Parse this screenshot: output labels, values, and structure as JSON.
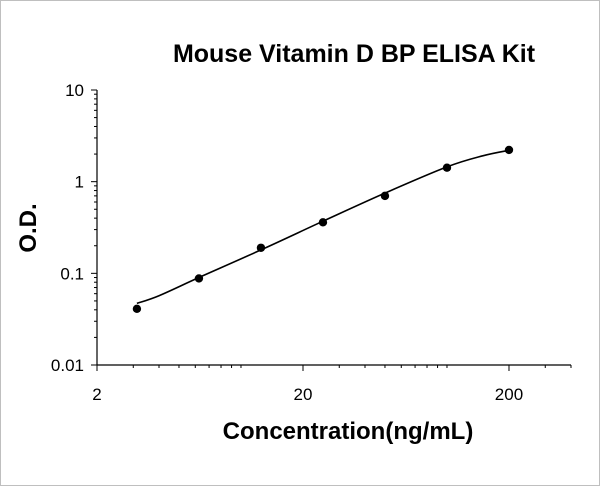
{
  "chart_data": {
    "type": "scatter",
    "title": "Mouse Vitamin D BP ELISA Kit",
    "xlabel": "Concentration(ng/mL)",
    "ylabel": "O.D.",
    "x_scale": "log",
    "y_scale": "log",
    "xlim": [
      2,
      400
    ],
    "ylim": [
      0.01,
      10
    ],
    "x_tick_labels": [
      "2",
      "20",
      "200"
    ],
    "y_tick_labels": [
      "0.01",
      "0.1",
      "1",
      "10"
    ],
    "grid": false,
    "legend": "none",
    "series": [
      {
        "x": [
          3.125,
          6.25,
          12.5,
          25,
          50,
          100,
          200
        ],
        "y": [
          0.041,
          0.088,
          0.19,
          0.36,
          0.7,
          1.42,
          2.22
        ]
      }
    ],
    "fit_curve": {
      "x": [
        3.125,
        4,
        6.25,
        12.5,
        25,
        50,
        100,
        150,
        200
      ],
      "y": [
        0.047,
        0.057,
        0.09,
        0.18,
        0.37,
        0.75,
        1.45,
        1.92,
        2.2
      ]
    }
  }
}
